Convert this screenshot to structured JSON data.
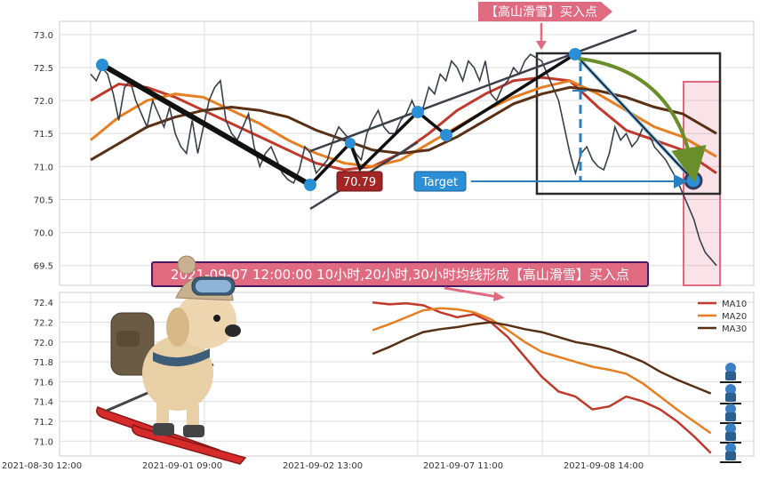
{
  "chart_data": [
    {
      "type": "line",
      "panel": "top",
      "ylim": [
        69.2,
        73.2
      ],
      "yticks": [
        69.5,
        70.0,
        70.5,
        71.0,
        71.5,
        72.0,
        72.5,
        73.0
      ],
      "ytick_labels": [
        "69.5",
        "70.0",
        "70.5",
        "71.0",
        "71.5",
        "72.0",
        "72.5",
        "73.0"
      ],
      "price_x": [
        0,
        1,
        2,
        3,
        4,
        5,
        6,
        7,
        8,
        9,
        10,
        11,
        12,
        13,
        14,
        15,
        16,
        17,
        18,
        19,
        20,
        21,
        22,
        23,
        24,
        25,
        26,
        27,
        28,
        29,
        30,
        31,
        32,
        33,
        34,
        35,
        36,
        37,
        38,
        39,
        40,
        41,
        42,
        43,
        44,
        45,
        46,
        47,
        48,
        49,
        50,
        51,
        52,
        53,
        54,
        55,
        56,
        57,
        58,
        59,
        60,
        61,
        62,
        63,
        64,
        65,
        66,
        67,
        68,
        69,
        70,
        71,
        72,
        73,
        74,
        75,
        76,
        77,
        78,
        79,
        80,
        81,
        82,
        83,
        84,
        85,
        86,
        87,
        88,
        89,
        90,
        91,
        92,
        93,
        94,
        95,
        96,
        97,
        98,
        99,
        100,
        101,
        102,
        103,
        104,
        105,
        106,
        107,
        108,
        109,
        110,
        111
      ],
      "price": [
        72.4,
        72.3,
        72.5,
        72.4,
        72.1,
        71.7,
        72.2,
        72.3,
        72.0,
        71.8,
        71.6,
        72.0,
        71.8,
        71.6,
        71.9,
        71.5,
        71.3,
        71.2,
        71.7,
        71.2,
        71.6,
        72.0,
        72.2,
        72.3,
        71.7,
        71.5,
        71.4,
        71.6,
        71.8,
        71.3,
        71.0,
        71.2,
        71.3,
        71.1,
        70.9,
        70.8,
        70.75,
        70.95,
        71.3,
        71.2,
        70.9,
        71.0,
        71.1,
        71.4,
        71.6,
        71.5,
        71.4,
        71.2,
        71.1,
        71.5,
        71.7,
        71.85,
        71.6,
        71.5,
        71.5,
        71.7,
        71.8,
        72.0,
        71.8,
        71.9,
        72.2,
        72.1,
        72.4,
        72.3,
        72.6,
        72.5,
        72.3,
        72.6,
        72.5,
        72.3,
        72.6,
        72.1,
        72.0,
        72.2,
        72.3,
        72.5,
        72.4,
        72.6,
        72.7,
        72.65,
        72.6,
        72.4,
        72.2,
        72.0,
        71.6,
        71.2,
        70.9,
        71.2,
        71.3,
        71.1,
        71.0,
        70.95,
        71.2,
        71.6,
        71.4,
        71.5,
        71.3,
        71.4,
        71.6,
        71.5,
        71.3,
        71.2,
        71.1,
        70.95,
        70.8,
        70.6,
        70.4,
        70.2,
        69.9,
        69.7,
        69.6,
        69.5
      ],
      "series": [
        {
          "name": "MA10",
          "color": "#c0392b",
          "x": [
            0,
            5,
            10,
            15,
            20,
            25,
            30,
            35,
            40,
            45,
            50,
            55,
            60,
            65,
            70,
            75,
            80,
            85,
            90,
            95,
            100,
            105,
            111
          ],
          "values": [
            72.0,
            72.25,
            72.2,
            72.05,
            71.85,
            71.65,
            71.45,
            71.25,
            71.05,
            70.95,
            71.0,
            71.2,
            71.5,
            71.85,
            72.1,
            72.3,
            72.35,
            72.3,
            71.9,
            71.55,
            71.4,
            71.25,
            70.9
          ]
        },
        {
          "name": "MA20",
          "color": "#e67e22",
          "x": [
            0,
            5,
            10,
            15,
            20,
            25,
            30,
            35,
            40,
            45,
            50,
            55,
            60,
            65,
            70,
            75,
            80,
            85,
            90,
            95,
            100,
            105,
            111
          ],
          "values": [
            71.4,
            71.75,
            72.0,
            72.1,
            72.05,
            71.85,
            71.65,
            71.4,
            71.2,
            71.05,
            71.0,
            71.1,
            71.35,
            71.6,
            71.85,
            72.05,
            72.2,
            72.3,
            72.1,
            71.85,
            71.6,
            71.45,
            71.15
          ]
        },
        {
          "name": "MA30",
          "color": "#5a3015",
          "x": [
            0,
            5,
            10,
            15,
            20,
            25,
            30,
            35,
            40,
            45,
            50,
            55,
            60,
            65,
            70,
            75,
            80,
            85,
            90,
            95,
            100,
            105,
            111
          ],
          "values": [
            71.1,
            71.35,
            71.6,
            71.75,
            71.85,
            71.9,
            71.85,
            71.75,
            71.55,
            71.4,
            71.25,
            71.2,
            71.25,
            71.45,
            71.7,
            71.95,
            72.1,
            72.2,
            72.15,
            72.05,
            71.9,
            71.8,
            71.5
          ]
        }
      ],
      "annotation_top": "【高山滑雪】买入点",
      "low_label": "70.79",
      "target_label": "Target"
    },
    {
      "type": "line",
      "panel": "bottom",
      "ylim": [
        70.85,
        72.5
      ],
      "yticks": [
        71.0,
        71.2,
        71.4,
        71.6,
        71.8,
        72.0,
        72.2,
        72.4
      ],
      "ytick_labels": [
        "71.0",
        "71.2",
        "71.4",
        "71.6",
        "71.8",
        "72.0",
        "72.2",
        "72.4"
      ],
      "x_tick_labels": [
        "2021-08-30 12:00",
        "2021-09-01 09:00",
        "2021-09-02 13:00",
        "2021-09-07 11:00",
        "2021-09-08 14:00"
      ],
      "legend_position": "top-right",
      "series": [
        {
          "name": "MA10",
          "color": "#c0392b",
          "x": [
            50,
            53,
            56,
            59,
            62,
            65,
            68,
            71,
            74,
            77,
            80,
            83,
            86,
            89,
            92,
            95,
            98,
            101,
            104,
            107,
            110
          ],
          "values": [
            72.4,
            72.38,
            72.39,
            72.37,
            72.3,
            72.25,
            72.28,
            72.2,
            72.05,
            71.85,
            71.65,
            71.5,
            71.45,
            71.32,
            71.35,
            71.45,
            71.4,
            71.32,
            71.2,
            71.05,
            70.88
          ]
        },
        {
          "name": "MA20",
          "color": "#e67e22",
          "x": [
            50,
            53,
            56,
            59,
            62,
            65,
            68,
            71,
            74,
            77,
            80,
            83,
            86,
            89,
            92,
            95,
            98,
            101,
            104,
            107,
            110
          ],
          "values": [
            72.12,
            72.18,
            72.25,
            72.32,
            72.34,
            72.33,
            72.3,
            72.23,
            72.12,
            72.0,
            71.9,
            71.85,
            71.8,
            71.75,
            71.72,
            71.68,
            71.58,
            71.45,
            71.32,
            71.2,
            71.08
          ]
        },
        {
          "name": "MA30",
          "color": "#5a3015",
          "x": [
            50,
            53,
            56,
            59,
            62,
            65,
            68,
            71,
            74,
            77,
            80,
            83,
            86,
            89,
            92,
            95,
            98,
            101,
            104,
            107,
            110
          ],
          "values": [
            71.88,
            71.95,
            72.03,
            72.1,
            72.13,
            72.15,
            72.18,
            72.2,
            72.17,
            72.13,
            72.1,
            72.05,
            72.0,
            71.97,
            71.93,
            71.87,
            71.8,
            71.7,
            71.62,
            71.55,
            71.48
          ]
        }
      ],
      "annotation": "2021-09-07 12:00:00 10小时,20小时,30小时均线形成【高山滑雪】买入点"
    }
  ]
}
